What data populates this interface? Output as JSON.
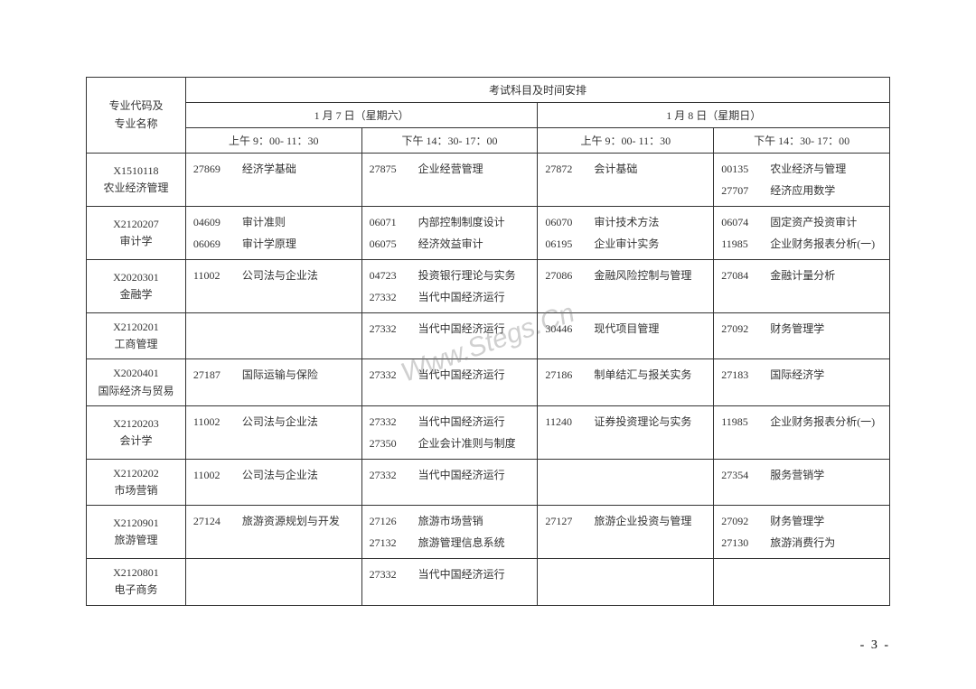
{
  "watermark_text": "Www.Stegs.Cn",
  "page_number": "- 3 -",
  "background_color": "#ffffff",
  "border_color": "#333333",
  "text_color": "#333333",
  "font_size_body": 12,
  "font_size_pagenum": 14,
  "header": {
    "major_label": "专业代码及\n专业名称",
    "main_title": "考试科目及时间安排",
    "day1_label": "1 月 7  日（星期六）",
    "day2_label": "1 月 8 日（星期日）",
    "slot1_label": "上午 9：00- 11：30",
    "slot2_label": "下午 14：30- 17：00",
    "slot3_label": "上午 9：00- 11：30",
    "slot4_label": "下午 14：30- 17：00"
  },
  "rows": [
    {
      "major_code": "X1510118",
      "major_name": "农业经济管理",
      "slots": [
        [
          {
            "code": "27869",
            "name": "经济学基础"
          }
        ],
        [
          {
            "code": "27875",
            "name": "企业经营管理"
          }
        ],
        [
          {
            "code": "27872",
            "name": "会计基础"
          }
        ],
        [
          {
            "code": "00135",
            "name": "农业经济与管理"
          },
          {
            "code": "27707",
            "name": "经济应用数学"
          }
        ]
      ]
    },
    {
      "major_code": "X2120207",
      "major_name": "审计学",
      "slots": [
        [
          {
            "code": "04609",
            "name": "审计准则"
          },
          {
            "code": "06069",
            "name": "审计学原理"
          }
        ],
        [
          {
            "code": "06071",
            "name": "内部控制制度设计"
          },
          {
            "code": "06075",
            "name": "经济效益审计"
          }
        ],
        [
          {
            "code": "06070",
            "name": "审计技术方法"
          },
          {
            "code": "06195",
            "name": "企业审计实务"
          }
        ],
        [
          {
            "code": "06074",
            "name": "固定资产投资审计"
          },
          {
            "code": "11985",
            "name": "企业财务报表分析(一)"
          }
        ]
      ]
    },
    {
      "major_code": "X2020301",
      "major_name": "金融学",
      "slots": [
        [
          {
            "code": "11002",
            "name": "公司法与企业法"
          }
        ],
        [
          {
            "code": "04723",
            "name": "投资银行理论与实务"
          },
          {
            "code": "27332",
            "name": "当代中国经济运行"
          }
        ],
        [
          {
            "code": "27086",
            "name": "金融风险控制与管理"
          }
        ],
        [
          {
            "code": "27084",
            "name": "金融计量分析"
          }
        ]
      ]
    },
    {
      "major_code": "X2120201",
      "major_name": "工商管理",
      "slots": [
        [],
        [
          {
            "code": "27332",
            "name": "当代中国经济运行"
          }
        ],
        [
          {
            "code": "30446",
            "name": "现代项目管理"
          }
        ],
        [
          {
            "code": "27092",
            "name": "财务管理学"
          }
        ]
      ]
    },
    {
      "major_code": "X2020401",
      "major_name": "国际经济与贸易",
      "slots": [
        [
          {
            "code": "27187",
            "name": "国际运输与保险"
          }
        ],
        [
          {
            "code": "27332",
            "name": "当代中国经济运行"
          }
        ],
        [
          {
            "code": "27186",
            "name": "制单结汇与报关实务"
          }
        ],
        [
          {
            "code": "27183",
            "name": "国际经济学"
          }
        ]
      ]
    },
    {
      "major_code": "X2120203",
      "major_name": "会计学",
      "slots": [
        [
          {
            "code": "11002",
            "name": "公司法与企业法"
          }
        ],
        [
          {
            "code": "27332",
            "name": "当代中国经济运行"
          },
          {
            "code": "27350",
            "name": "企业会计准则与制度"
          }
        ],
        [
          {
            "code": "11240",
            "name": "证券投资理论与实务"
          }
        ],
        [
          {
            "code": "11985",
            "name": "企业财务报表分析(一)"
          }
        ]
      ]
    },
    {
      "major_code": "X2120202",
      "major_name": "市场营销",
      "slots": [
        [
          {
            "code": "11002",
            "name": "公司法与企业法"
          }
        ],
        [
          {
            "code": "27332",
            "name": "当代中国经济运行"
          }
        ],
        [],
        [
          {
            "code": "27354",
            "name": "服务营销学"
          }
        ]
      ]
    },
    {
      "major_code": "X2120901",
      "major_name": "旅游管理",
      "slots": [
        [
          {
            "code": "27124",
            "name": "旅游资源规划与开发"
          }
        ],
        [
          {
            "code": "27126",
            "name": "旅游市场营销"
          },
          {
            "code": "27132",
            "name": "旅游管理信息系统"
          }
        ],
        [
          {
            "code": "27127",
            "name": "旅游企业投资与管理"
          }
        ],
        [
          {
            "code": "27092",
            "name": "财务管理学"
          },
          {
            "code": "27130",
            "name": "旅游消费行为"
          }
        ]
      ]
    },
    {
      "major_code": "X2120801",
      "major_name": "电子商务",
      "slots": [
        [],
        [
          {
            "code": "27332",
            "name": "当代中国经济运行"
          }
        ],
        [],
        []
      ]
    }
  ]
}
